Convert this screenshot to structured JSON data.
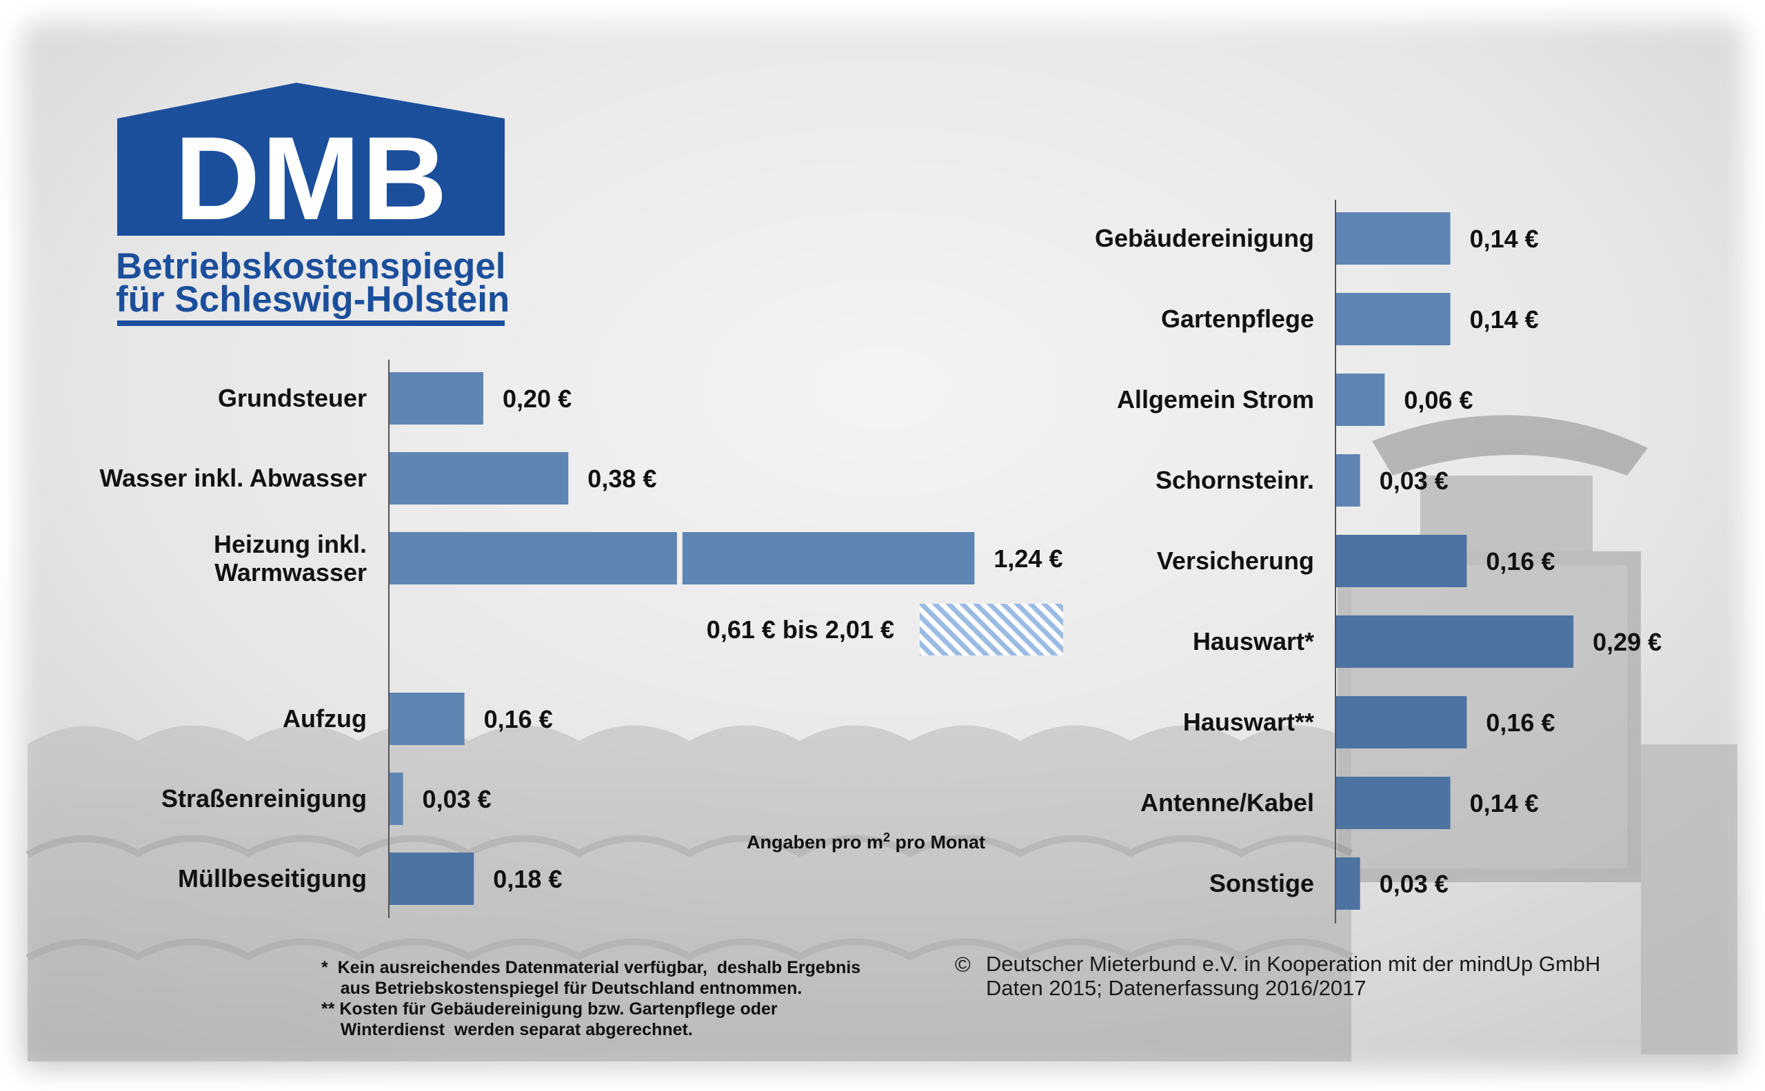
{
  "logo": {
    "title": "DMB",
    "line1": "Betriebskostenspiegel",
    "line2": "für Schleswig-Holstein"
  },
  "colors": {
    "bar": "#5f85b3",
    "bar_dark": "#4d73a1",
    "logo_blue": "#1b4f9c",
    "hatch": "#9bbbe3"
  },
  "chart_data": [
    {
      "type": "bar",
      "orientation": "horizontal",
      "unit": "€",
      "categories": [
        "Grundsteuer",
        "Wasser inkl. Abwasser",
        "Heizung inkl. Warmwasser",
        "Aufzug",
        "Straßenreinigung",
        "Müllbeseitigung"
      ],
      "values": [
        0.2,
        0.38,
        1.24,
        0.16,
        0.03,
        0.18
      ],
      "value_labels": [
        "0,20 €",
        "0,38 €",
        "1,24 €",
        "0,16 €",
        "0,03 €",
        "0,18 €"
      ],
      "range_note": {
        "label": "0,61 € bis 2,01 €",
        "min": 0.61,
        "max": 2.01,
        "category": "Heizung inkl. Warmwasser"
      }
    },
    {
      "type": "bar",
      "orientation": "horizontal",
      "unit": "€",
      "categories": [
        "Gebäudereinigung",
        "Gartenpflege",
        "Allgemein Strom",
        "Schornsteinr.",
        "Versicherung",
        "Hauswart*",
        "Hauswart**",
        "Antenne/Kabel",
        "Sonstige"
      ],
      "values": [
        0.14,
        0.14,
        0.06,
        0.03,
        0.16,
        0.29,
        0.16,
        0.14,
        0.03
      ],
      "value_labels": [
        "0,14 €",
        "0,14 €",
        "0,06 €",
        "0,03 €",
        "0,16 €",
        "0,29 €",
        "0,16 €",
        "0,14 €",
        "0,03 €"
      ]
    }
  ],
  "unit_note": {
    "prefix": "Angaben pro m",
    "sup": "2",
    "suffix": " pro Monat"
  },
  "footnotes": [
    "*  Kein ausreichendes Datenmaterial verfügbar,  deshalb Ergebnis",
    "    aus Betriebskostenspiegel für Deutschland entnommen.",
    "** Kosten für Gebäudereinigung bzw. Gartenpflege oder",
    "    Winterdienst  werden separat abgerechnet."
  ],
  "copyright": {
    "symbol": "©",
    "line1": "Deutscher Mieterbund e.V. in Kooperation mit der mindUp GmbH",
    "line2": "Daten 2015; Datenerfassung 2016/2017"
  }
}
